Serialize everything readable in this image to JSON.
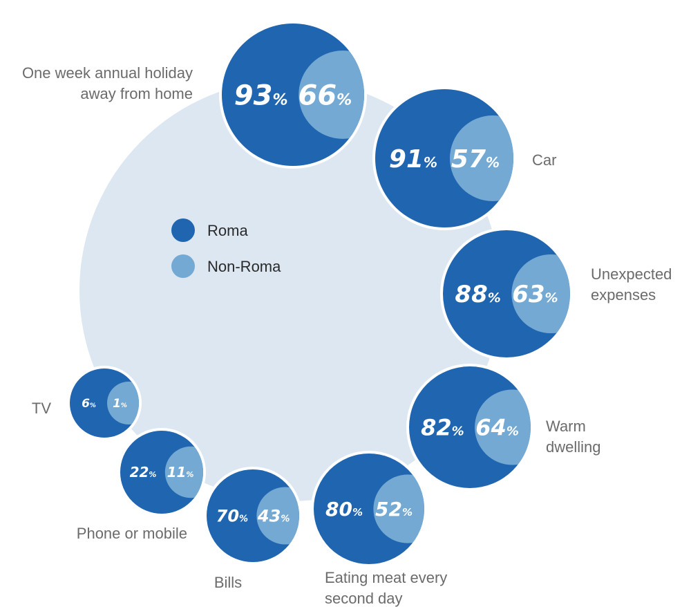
{
  "chart_data": {
    "type": "bubble-comparison",
    "legend": [
      {
        "name": "Roma",
        "color": "#1f65b0"
      },
      {
        "name": "Non-Roma",
        "color": "#74a9d3"
      }
    ],
    "colors": {
      "ring": "#dce7f1",
      "roma": "#1f65b0",
      "non_roma": "#74a9d3",
      "bubble_border": "#ffffff"
    },
    "unit": "%",
    "categories": [
      {
        "label_lines": [
          "One week annual holiday",
          "away from home"
        ],
        "roma": 93,
        "non_roma": 66
      },
      {
        "label_lines": [
          "Car"
        ],
        "roma": 91,
        "non_roma": 57
      },
      {
        "label_lines": [
          "Unexpected",
          "expenses"
        ],
        "roma": 88,
        "non_roma": 63
      },
      {
        "label_lines": [
          "Warm",
          "dwelling"
        ],
        "roma": 82,
        "non_roma": 64
      },
      {
        "label_lines": [
          "Eating meat every",
          "second day"
        ],
        "roma": 80,
        "non_roma": 52
      },
      {
        "label_lines": [
          "Bills"
        ],
        "roma": 70,
        "non_roma": 43
      },
      {
        "label_lines": [
          "Phone or mobile"
        ],
        "roma": 22,
        "non_roma": 11
      },
      {
        "label_lines": [
          "TV"
        ],
        "roma": 6,
        "non_roma": 1
      }
    ]
  }
}
